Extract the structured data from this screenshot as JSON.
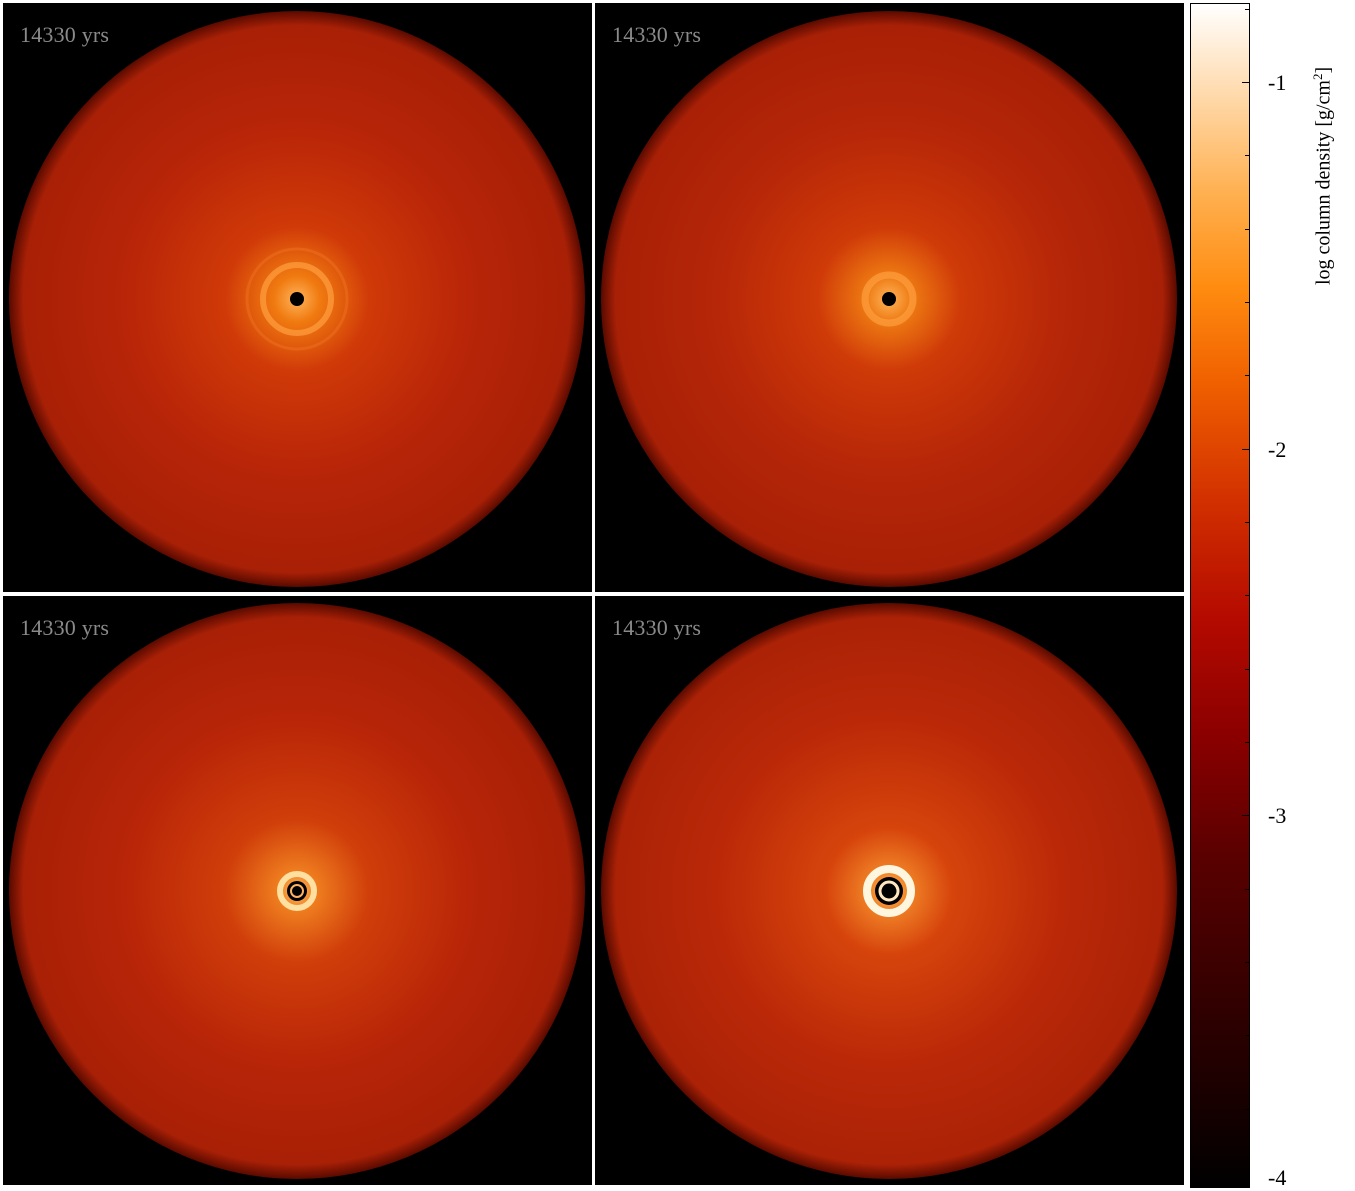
{
  "panels": [
    {
      "time_label": "14330 yrs",
      "ring": "faint"
    },
    {
      "time_label": "14330 yrs",
      "ring": "faint"
    },
    {
      "time_label": "14330 yrs",
      "ring": "medium"
    },
    {
      "time_label": "14330 yrs",
      "ring": "bright"
    }
  ],
  "colorbar": {
    "title_prefix": "log column density [g/cm",
    "title_sup": "2",
    "title_suffix": "]",
    "min": -4,
    "max": -0.8,
    "tick_labels": [
      "-1",
      "-2",
      "-3",
      "-4"
    ],
    "tick_values": [
      -1,
      -2,
      -3,
      -4
    ],
    "colors": {
      "low": "#000000",
      "mid": "#b40a00",
      "high": "#ffffff"
    }
  }
}
